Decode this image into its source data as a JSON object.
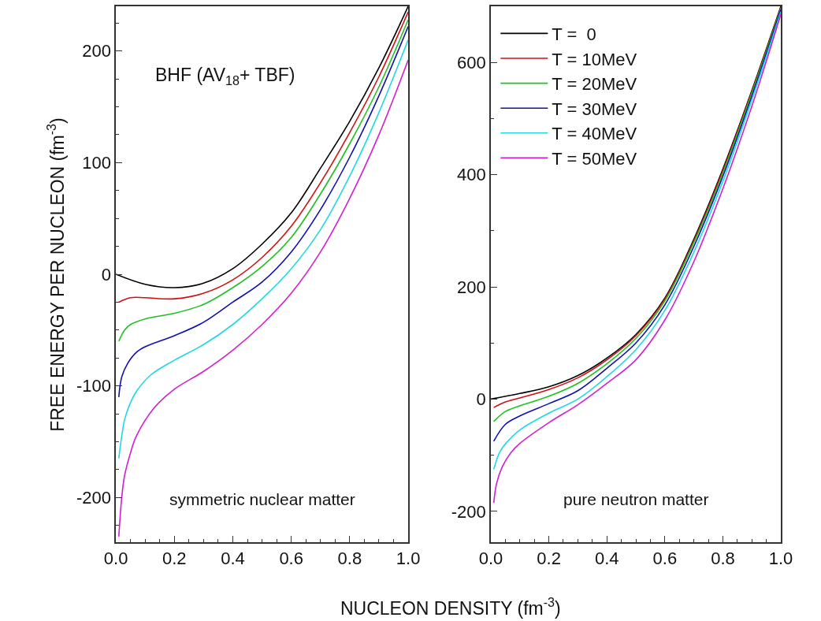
{
  "chart_data": [
    {
      "type": "line",
      "ylabel": "FREE ENERGY PER NUCLEON (fm$^{-3}$)",
      "xlabel": "NUCLEON DENSITY (fm$^{-3}$)",
      "annotations": [
        "BHF (AV$_{18}$+ TBF)",
        "symmetric nuclear matter"
      ],
      "xlim": [
        0,
        1
      ],
      "xticks": [
        {
          "value": 0,
          "label": "0.0"
        },
        {
          "value": 0.2,
          "label": "0.2"
        },
        {
          "value": 0.4,
          "label": "0.4"
        },
        {
          "value": 0.6,
          "label": "0.6"
        },
        {
          "value": 0.8,
          "label": "0.8"
        },
        {
          "value": 1,
          "label": "1.0"
        }
      ],
      "ylim": [
        -240,
        240
      ],
      "yticks": [
        -200,
        -100,
        0,
        100,
        200
      ],
      "legend": false,
      "marker": "none",
      "line_style": "solid",
      "series": [
        {
          "color": "#000000",
          "x": [
            0,
            0.1,
            0.2,
            0.3,
            0.4,
            0.5,
            0.6,
            0.7,
            0.8,
            0.9,
            1.0
          ],
          "values": [
            0,
            -9,
            -12,
            -8,
            5,
            27,
            55,
            95,
            137,
            185,
            240
          ]
        },
        {
          "color": "#d01010",
          "x": [
            0.01,
            0.05,
            0.1,
            0.2,
            0.3,
            0.4,
            0.5,
            0.6,
            0.7,
            0.8,
            0.9,
            1.0
          ],
          "values": [
            -25,
            -21,
            -21,
            -22,
            -17,
            -5,
            15,
            43,
            82,
            127,
            177,
            235
          ]
        },
        {
          "color": "#20c020",
          "x": [
            0.01,
            0.03,
            0.05,
            0.1,
            0.2,
            0.3,
            0.4,
            0.5,
            0.6,
            0.7,
            0.8,
            0.9,
            1.0
          ],
          "values": [
            -60,
            -50,
            -45,
            -40,
            -35,
            -27,
            -12,
            7,
            33,
            72,
            117,
            168,
            228
          ]
        },
        {
          "color": "#1010b0",
          "x": [
            0.01,
            0.02,
            0.04,
            0.07,
            0.1,
            0.2,
            0.3,
            0.4,
            0.5,
            0.6,
            0.7,
            0.8,
            0.9,
            1.0
          ],
          "values": [
            -110,
            -92,
            -80,
            -70,
            -65,
            -55,
            -43,
            -25,
            -7,
            20,
            58,
            105,
            160,
            222
          ]
        },
        {
          "color": "#20d8e0",
          "x": [
            0.01,
            0.02,
            0.03,
            0.05,
            0.07,
            0.12,
            0.2,
            0.3,
            0.4,
            0.5,
            0.6,
            0.7,
            0.8,
            0.9,
            1.0
          ],
          "values": [
            -165,
            -145,
            -130,
            -115,
            -105,
            -90,
            -77,
            -63,
            -45,
            -22,
            5,
            40,
            88,
            145,
            210
          ]
        },
        {
          "color": "#d020d0",
          "x": [
            0.01,
            0.02,
            0.03,
            0.05,
            0.07,
            0.13,
            0.2,
            0.3,
            0.4,
            0.5,
            0.6,
            0.7,
            0.8,
            0.9,
            1.0
          ],
          "values": [
            -235,
            -200,
            -180,
            -160,
            -145,
            -120,
            -103,
            -87,
            -68,
            -45,
            -17,
            20,
            68,
            125,
            192
          ]
        }
      ]
    },
    {
      "type": "line",
      "annotations": [
        "pure neutron matter"
      ],
      "legend": "top left",
      "xlim": [
        0,
        1
      ],
      "xticks": [
        {
          "value": 0,
          "label": "0.0"
        },
        {
          "value": 0.2,
          "label": "0.2"
        },
        {
          "value": 0.4,
          "label": "0.4"
        },
        {
          "value": 0.6,
          "label": "0.6"
        },
        {
          "value": 0.8,
          "label": "0.8"
        },
        {
          "value": 1,
          "label": "1.0"
        }
      ],
      "ylim": [
        -255,
        700
      ],
      "yticks": [
        -200,
        0,
        200,
        400,
        600
      ],
      "marker": "none",
      "line_style": "solid",
      "series": [
        {
          "name": "T =  0",
          "color": "#000000",
          "x": [
            0,
            0.1,
            0.2,
            0.3,
            0.4,
            0.5,
            0.6,
            0.7,
            0.8,
            0.9,
            1.0
          ],
          "values": [
            0,
            10,
            22,
            42,
            73,
            115,
            180,
            285,
            410,
            550,
            700
          ]
        },
        {
          "name": "T = 10MeV",
          "color": "#d01010",
          "x": [
            0.01,
            0.05,
            0.1,
            0.2,
            0.3,
            0.4,
            0.5,
            0.6,
            0.7,
            0.8,
            0.9,
            1.0
          ],
          "values": [
            -15,
            -5,
            2,
            17,
            38,
            70,
            113,
            178,
            282,
            407,
            548,
            698
          ]
        },
        {
          "name": "T = 20MeV",
          "color": "#20c020",
          "x": [
            0.01,
            0.05,
            0.1,
            0.2,
            0.3,
            0.4,
            0.5,
            0.6,
            0.7,
            0.8,
            0.9,
            1.0
          ],
          "values": [
            -40,
            -22,
            -12,
            5,
            28,
            63,
            108,
            175,
            279,
            403,
            545,
            696
          ]
        },
        {
          "name": "T = 30MeV",
          "color": "#1010b0",
          "x": [
            0.01,
            0.05,
            0.1,
            0.2,
            0.3,
            0.4,
            0.5,
            0.6,
            0.7,
            0.8,
            0.9,
            1.0
          ],
          "values": [
            -75,
            -45,
            -30,
            -8,
            15,
            55,
            100,
            168,
            272,
            397,
            540,
            694
          ]
        },
        {
          "name": "T = 40MeV",
          "color": "#20d8e0",
          "x": [
            0.01,
            0.03,
            0.05,
            0.1,
            0.2,
            0.3,
            0.4,
            0.5,
            0.6,
            0.7,
            0.8,
            0.9,
            1.0
          ],
          "values": [
            -125,
            -95,
            -80,
            -55,
            -25,
            0,
            40,
            88,
            158,
            262,
            388,
            533,
            690
          ]
        },
        {
          "name": "T = 50MeV",
          "color": "#d020d0",
          "x": [
            0.01,
            0.02,
            0.04,
            0.07,
            0.1,
            0.2,
            0.3,
            0.4,
            0.5,
            0.6,
            0.7,
            0.8,
            0.9,
            1.0
          ],
          "values": [
            -185,
            -150,
            -120,
            -95,
            -79,
            -42,
            -10,
            28,
            70,
            141,
            245,
            375,
            522,
            686
          ]
        }
      ]
    }
  ]
}
